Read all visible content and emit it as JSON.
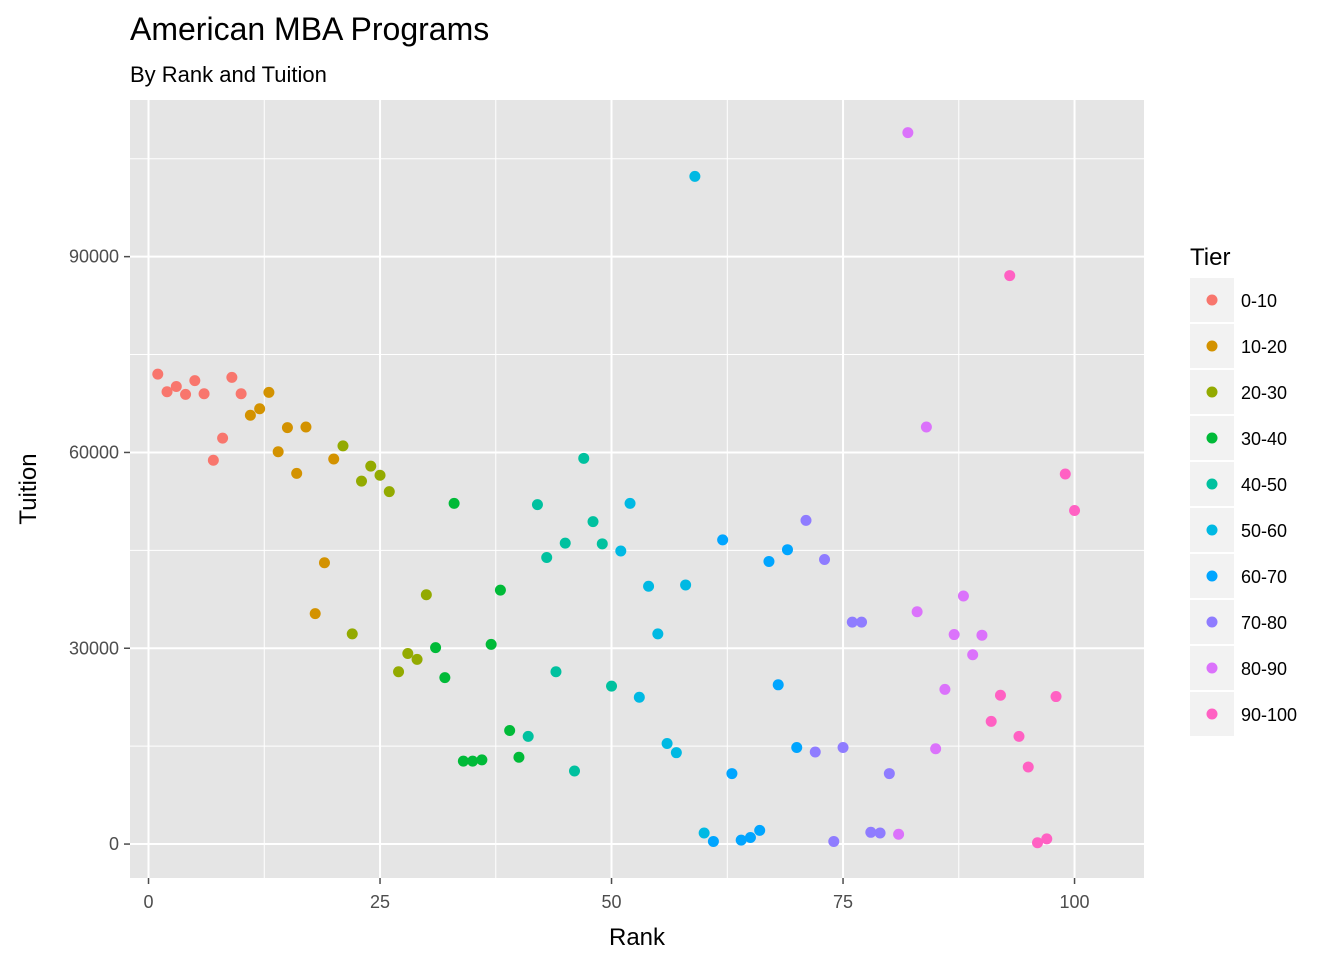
{
  "colors": {
    "panel_bg": "#e5e5e5",
    "grid": "#ffffff",
    "tick": "#4d4d4d",
    "tiers": [
      "#f8766d",
      "#d39200",
      "#93aa00",
      "#00ba38",
      "#00c19f",
      "#00b9e3",
      "#00a5ff",
      "#8f7cff",
      "#db72fb",
      "#ff61c3"
    ]
  },
  "chart_data": {
    "type": "scatter",
    "title": "American MBA Programs",
    "subtitle": "By Rank and Tuition",
    "xlabel": "Rank",
    "ylabel": "Tuition",
    "xlim": [
      -2,
      107.5
    ],
    "ylim": [
      -5200,
      114000
    ],
    "xticks": [
      0,
      25,
      50,
      75,
      100
    ],
    "yticks": [
      0,
      30000,
      60000,
      90000
    ],
    "grid": true,
    "legend_title": "Tier",
    "legend_position": "right",
    "tiers": [
      "0-10",
      "10-20",
      "20-30",
      "30-40",
      "40-50",
      "50-60",
      "60-70",
      "70-80",
      "80-90",
      "90-100"
    ],
    "points": [
      {
        "x": 1,
        "y": 72000,
        "tier": 0
      },
      {
        "x": 2,
        "y": 69300,
        "tier": 0
      },
      {
        "x": 3,
        "y": 70100,
        "tier": 0
      },
      {
        "x": 4,
        "y": 68900,
        "tier": 0
      },
      {
        "x": 5,
        "y": 71000,
        "tier": 0
      },
      {
        "x": 6,
        "y": 69000,
        "tier": 0
      },
      {
        "x": 7,
        "y": 58800,
        "tier": 0
      },
      {
        "x": 8,
        "y": 62200,
        "tier": 0
      },
      {
        "x": 9,
        "y": 71500,
        "tier": 0
      },
      {
        "x": 10,
        "y": 69000,
        "tier": 0
      },
      {
        "x": 11,
        "y": 65700,
        "tier": 1
      },
      {
        "x": 12,
        "y": 66700,
        "tier": 1
      },
      {
        "x": 13,
        "y": 69200,
        "tier": 1
      },
      {
        "x": 14,
        "y": 60100,
        "tier": 1
      },
      {
        "x": 15,
        "y": 63800,
        "tier": 1
      },
      {
        "x": 16,
        "y": 56800,
        "tier": 1
      },
      {
        "x": 17,
        "y": 63900,
        "tier": 1
      },
      {
        "x": 18,
        "y": 35300,
        "tier": 1
      },
      {
        "x": 19,
        "y": 43100,
        "tier": 1
      },
      {
        "x": 20,
        "y": 59000,
        "tier": 1
      },
      {
        "x": 21,
        "y": 61000,
        "tier": 2
      },
      {
        "x": 22,
        "y": 32200,
        "tier": 2
      },
      {
        "x": 23,
        "y": 55600,
        "tier": 2
      },
      {
        "x": 24,
        "y": 57900,
        "tier": 2
      },
      {
        "x": 25,
        "y": 56500,
        "tier": 2
      },
      {
        "x": 26,
        "y": 54000,
        "tier": 2
      },
      {
        "x": 27,
        "y": 26400,
        "tier": 2
      },
      {
        "x": 28,
        "y": 29200,
        "tier": 2
      },
      {
        "x": 29,
        "y": 28300,
        "tier": 2
      },
      {
        "x": 30,
        "y": 38200,
        "tier": 2
      },
      {
        "x": 31,
        "y": 30100,
        "tier": 3
      },
      {
        "x": 32,
        "y": 25500,
        "tier": 3
      },
      {
        "x": 33,
        "y": 52200,
        "tier": 3
      },
      {
        "x": 34,
        "y": 12700,
        "tier": 3
      },
      {
        "x": 35,
        "y": 12700,
        "tier": 3
      },
      {
        "x": 36,
        "y": 12900,
        "tier": 3
      },
      {
        "x": 37,
        "y": 30600,
        "tier": 3
      },
      {
        "x": 38,
        "y": 38900,
        "tier": 3
      },
      {
        "x": 39,
        "y": 17400,
        "tier": 3
      },
      {
        "x": 40,
        "y": 13300,
        "tier": 3
      },
      {
        "x": 41,
        "y": 16500,
        "tier": 4
      },
      {
        "x": 42,
        "y": 52000,
        "tier": 4
      },
      {
        "x": 43,
        "y": 43900,
        "tier": 4
      },
      {
        "x": 44,
        "y": 26400,
        "tier": 4
      },
      {
        "x": 45,
        "y": 46100,
        "tier": 4
      },
      {
        "x": 46,
        "y": 11200,
        "tier": 4
      },
      {
        "x": 47,
        "y": 59100,
        "tier": 4
      },
      {
        "x": 48,
        "y": 49400,
        "tier": 4
      },
      {
        "x": 49,
        "y": 46000,
        "tier": 4
      },
      {
        "x": 50,
        "y": 24200,
        "tier": 4
      },
      {
        "x": 51,
        "y": 44900,
        "tier": 5
      },
      {
        "x": 52,
        "y": 52200,
        "tier": 5
      },
      {
        "x": 53,
        "y": 22500,
        "tier": 5
      },
      {
        "x": 54,
        "y": 39500,
        "tier": 5
      },
      {
        "x": 55,
        "y": 32200,
        "tier": 5
      },
      {
        "x": 56,
        "y": 15400,
        "tier": 5
      },
      {
        "x": 57,
        "y": 14000,
        "tier": 5
      },
      {
        "x": 58,
        "y": 39700,
        "tier": 5
      },
      {
        "x": 59,
        "y": 102300,
        "tier": 5
      },
      {
        "x": 60,
        "y": 1700,
        "tier": 5
      },
      {
        "x": 61,
        "y": 400,
        "tier": 6
      },
      {
        "x": 62,
        "y": 46600,
        "tier": 6
      },
      {
        "x": 63,
        "y": 10800,
        "tier": 6
      },
      {
        "x": 64,
        "y": 600,
        "tier": 6
      },
      {
        "x": 65,
        "y": 1000,
        "tier": 6
      },
      {
        "x": 66,
        "y": 2100,
        "tier": 6
      },
      {
        "x": 67,
        "y": 43300,
        "tier": 6
      },
      {
        "x": 68,
        "y": 24400,
        "tier": 6
      },
      {
        "x": 69,
        "y": 45100,
        "tier": 6
      },
      {
        "x": 70,
        "y": 14800,
        "tier": 6
      },
      {
        "x": 71,
        "y": 49600,
        "tier": 7
      },
      {
        "x": 72,
        "y": 14100,
        "tier": 7
      },
      {
        "x": 73,
        "y": 43600,
        "tier": 7
      },
      {
        "x": 74,
        "y": 400,
        "tier": 7
      },
      {
        "x": 75,
        "y": 14800,
        "tier": 7
      },
      {
        "x": 76,
        "y": 34000,
        "tier": 7
      },
      {
        "x": 77,
        "y": 34000,
        "tier": 7
      },
      {
        "x": 78,
        "y": 1800,
        "tier": 7
      },
      {
        "x": 79,
        "y": 1700,
        "tier": 7
      },
      {
        "x": 80,
        "y": 10800,
        "tier": 7
      },
      {
        "x": 81,
        "y": 1500,
        "tier": 8
      },
      {
        "x": 82,
        "y": 109000,
        "tier": 8
      },
      {
        "x": 83,
        "y": 35600,
        "tier": 8
      },
      {
        "x": 84,
        "y": 63900,
        "tier": 8
      },
      {
        "x": 85,
        "y": 14600,
        "tier": 8
      },
      {
        "x": 86,
        "y": 23700,
        "tier": 8
      },
      {
        "x": 87,
        "y": 32100,
        "tier": 8
      },
      {
        "x": 88,
        "y": 38000,
        "tier": 8
      },
      {
        "x": 89,
        "y": 29000,
        "tier": 8
      },
      {
        "x": 90,
        "y": 32000,
        "tier": 8
      },
      {
        "x": 91,
        "y": 18800,
        "tier": 9
      },
      {
        "x": 92,
        "y": 22800,
        "tier": 9
      },
      {
        "x": 93,
        "y": 87100,
        "tier": 9
      },
      {
        "x": 94,
        "y": 16500,
        "tier": 9
      },
      {
        "x": 95,
        "y": 11800,
        "tier": 9
      },
      {
        "x": 96,
        "y": 200,
        "tier": 9
      },
      {
        "x": 97,
        "y": 800,
        "tier": 9
      },
      {
        "x": 98,
        "y": 22600,
        "tier": 9
      },
      {
        "x": 99,
        "y": 56700,
        "tier": 9
      },
      {
        "x": 100,
        "y": 51100,
        "tier": 9
      }
    ]
  }
}
